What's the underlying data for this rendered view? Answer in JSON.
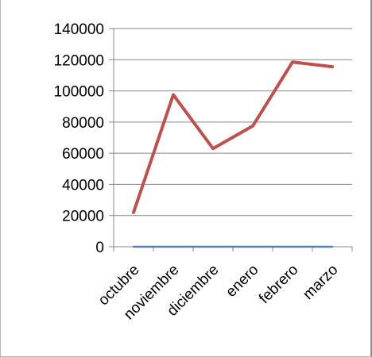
{
  "chart_data": {
    "type": "line",
    "categories": [
      "octubre",
      "noviembre",
      "diciembre",
      "enero",
      "febrero",
      "marzo"
    ],
    "series": [
      {
        "values": [
          22000,
          97500,
          63000,
          77500,
          118500,
          115500
        ],
        "color": "#c0504d"
      },
      {
        "values": [
          0,
          0,
          0,
          0,
          0,
          0
        ],
        "color": "#4f81bd"
      }
    ],
    "ylim": [
      0,
      140000
    ],
    "yticks": [
      0,
      20000,
      40000,
      60000,
      80000,
      100000,
      120000,
      140000
    ],
    "ytick_labels": [
      "0",
      "20000",
      "40000",
      "60000",
      "80000",
      "100000",
      "120000",
      "140000"
    ],
    "grid": true,
    "legend": "none",
    "gridline_color": "#878787"
  }
}
